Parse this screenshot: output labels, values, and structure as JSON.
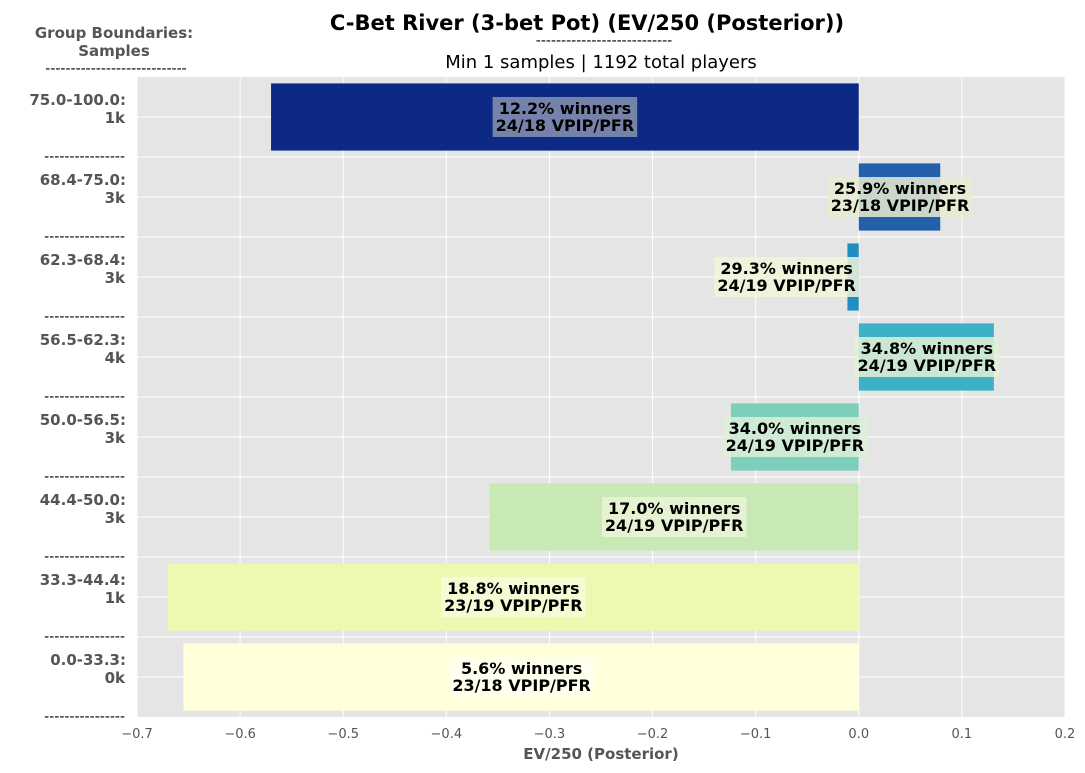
{
  "chart_data": {
    "type": "bar",
    "orientation": "horizontal",
    "title": "C-Bet River (3-bet Pot) (EV/250 (Posterior))",
    "title_rule": "---------------------------",
    "subtitle": "Min 1 samples | 1192 total players",
    "corner_label": {
      "line1": "Group Boundaries:",
      "line2": "Samples",
      "rule": "----------------------------"
    },
    "xlabel": "EV/250 (Posterior)",
    "xlim": [
      -0.7,
      0.2
    ],
    "xticks": [
      "−0.7",
      "−0.6",
      "−0.5",
      "−0.4",
      "−0.3",
      "−0.2",
      "−0.1",
      "0.0",
      "0.1",
      "0.2"
    ],
    "grid": true,
    "separator_text": "----------------",
    "categories": [
      {
        "range": "75.0-100.0:",
        "samples": "1k",
        "value": -0.57,
        "winners": "12.2% winners",
        "vpip": "24/18 VPIP/PFR",
        "color": "#0c2a83",
        "box": "#8892b0",
        "label_pos": -0.285
      },
      {
        "range": "68.4-75.0:",
        "samples": "3k",
        "value": 0.079,
        "winners": "25.9% winners",
        "vpip": "23/18 VPIP/PFR",
        "color": "#2360a9",
        "box": "#e9ecd1",
        "label_pos": 0.04
      },
      {
        "range": "62.3-68.4:",
        "samples": "3k",
        "value": -0.011,
        "winners": "29.3% winners",
        "vpip": "24/19 VPIP/PFR",
        "color": "#1f8fc1",
        "box": "#f3f4da",
        "label_pos": -0.07
      },
      {
        "range": "56.5-62.3:",
        "samples": "4k",
        "value": 0.131,
        "winners": "34.8% winners",
        "vpip": "24/19 VPIP/PFR",
        "color": "#3cb1c6",
        "box": "#e4f1d5",
        "label_pos": 0.066
      },
      {
        "range": "50.0-56.5:",
        "samples": "3k",
        "value": -0.124,
        "winners": "34.0% winners",
        "vpip": "24/19 VPIP/PFR",
        "color": "#7ecebc",
        "box": "#ddf0d9",
        "label_pos": -0.062
      },
      {
        "range": "44.4-50.0:",
        "samples": "3k",
        "value": -0.358,
        "winners": "17.0% winners",
        "vpip": "24/19 VPIP/PFR",
        "color": "#c8e9b4",
        "box": "#eaf5d8",
        "label_pos": -0.179
      },
      {
        "range": "33.3-44.4:",
        "samples": "1k",
        "value": -0.67,
        "winners": "18.8% winners",
        "vpip": "23/19 VPIP/PFR",
        "color": "#edf8b1",
        "box": "#f6fbdc",
        "label_pos": -0.335
      },
      {
        "range": "0.0-33.3:",
        "samples": "0k",
        "value": -0.655,
        "winners": "5.6% winners",
        "vpip": "23/18 VPIP/PFR",
        "color": "#ffffd9",
        "box": "#fffff0",
        "label_pos": -0.327
      }
    ]
  }
}
